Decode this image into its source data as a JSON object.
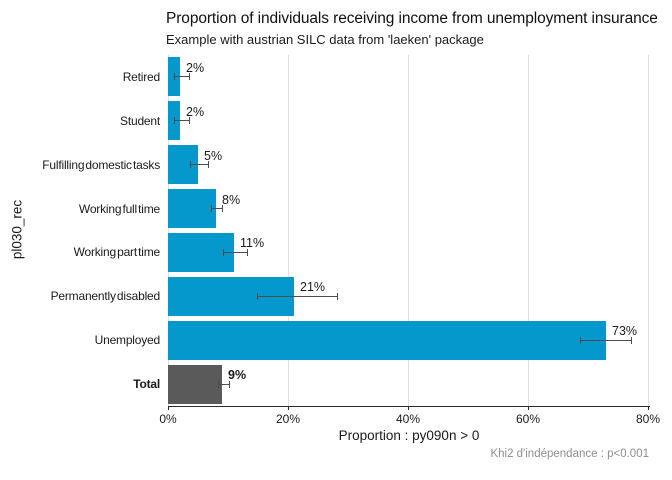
{
  "chart_data": {
    "type": "bar",
    "orientation": "horizontal",
    "title": "Proportion of individuals receiving income from unemployment insurance",
    "subtitle": "Example with austrian SILC data from 'laeken' package",
    "xlabel": "Proportion : py090n > 0",
    "ylabel": "pl030_rec",
    "caption": "Khi2 d'indépendance : p<0.001",
    "categories": [
      "Retired",
      "Student",
      "Fulfilling domestic tasks",
      "Working full time",
      "Working part time",
      "Permanently disabled",
      "Unemployed",
      "Total"
    ],
    "values": [
      2,
      2,
      5,
      8,
      11,
      21,
      73,
      9
    ],
    "value_labels": [
      "2%",
      "2%",
      "5%",
      "8%",
      "11%",
      "21%",
      "73%",
      "9%"
    ],
    "conf_intervals": [
      [
        1.0,
        3.7
      ],
      [
        1.0,
        3.7
      ],
      [
        3.6,
        6.8
      ],
      [
        7.1,
        9.2
      ],
      [
        9.1,
        13.3
      ],
      [
        14.8,
        28.4
      ],
      [
        68.7,
        77.3
      ],
      [
        8.4,
        10.3
      ]
    ],
    "total_category": "Total",
    "x_tick_values": [
      0,
      20,
      40,
      60,
      80
    ],
    "x_tick_labels": [
      "0%",
      "20%",
      "40%",
      "60%",
      "80%"
    ],
    "xlim": [
      0,
      80.33
    ],
    "grid": "vertical-major-only",
    "legend": "none",
    "colors": {
      "bar": "#0598cd",
      "total_bar": "#5a5a5a",
      "errorbar": "#4d4d4d",
      "gridline": "#dedede",
      "axis_line": "#2b2b2b",
      "text": "#1a1a1a",
      "caption_text": "#8e8e8e",
      "background": "#ffffff"
    }
  }
}
